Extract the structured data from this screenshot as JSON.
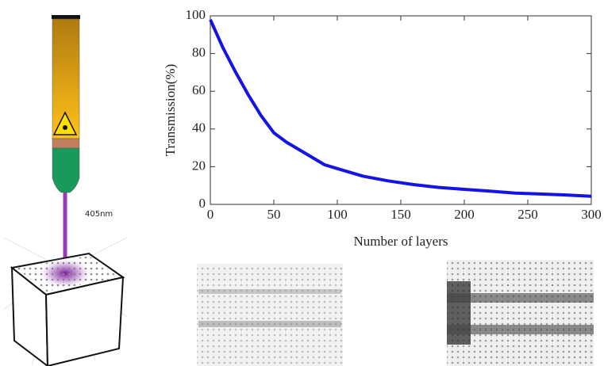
{
  "chart_data": {
    "type": "line",
    "xlabel": "Number of layers",
    "ylabel": "Transmission(%)",
    "annotations": [
      "405nm"
    ],
    "x": [
      0,
      10,
      20,
      30,
      40,
      50,
      60,
      70,
      80,
      90,
      100,
      120,
      140,
      160,
      180,
      200,
      220,
      240,
      260,
      280,
      300
    ],
    "values": [
      98,
      83,
      70,
      58,
      47,
      38,
      33,
      29,
      25,
      21,
      19,
      15,
      12.5,
      10.5,
      9,
      8,
      7,
      6,
      5.5,
      5,
      4.3
    ],
    "color": "#1414e6",
    "xlim": [
      0,
      300
    ],
    "ylim": [
      0,
      100
    ],
    "xticks": [
      0,
      50,
      100,
      150,
      200,
      250,
      300
    ],
    "yticks": [
      0,
      20,
      40,
      60,
      80,
      100
    ]
  }
}
